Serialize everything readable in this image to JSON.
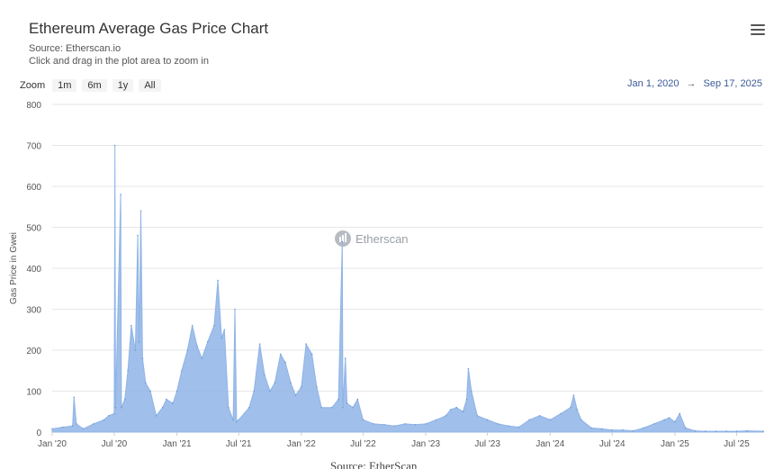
{
  "header": {
    "title": "Ethereum Average Gas Price Chart",
    "source": "Source: Etherscan.io",
    "hint": "Click and drag in the plot area to zoom in"
  },
  "menu": {
    "icon": "hamburger-menu-icon"
  },
  "zoom": {
    "label": "Zoom",
    "buttons": [
      "1m",
      "6m",
      "1y",
      "All"
    ]
  },
  "range": {
    "from": "Jan 1, 2020",
    "arrow": "→",
    "to": "Sep 17, 2025"
  },
  "watermark": {
    "text": "Etherscan",
    "icon": "etherscan-logo-icon"
  },
  "footer": {
    "source": "Source: EtherScan"
  },
  "colors": {
    "series": "#8fb4e6",
    "grid": "#e6e6e6",
    "axis": "#cccccc",
    "range_text": "#3c5a99"
  },
  "chart_data": {
    "type": "area",
    "title": "Ethereum Average Gas Price Chart",
    "ylabel": "Gas Price in Gwei",
    "ylim": [
      0,
      800
    ],
    "yticks": [
      0,
      100,
      200,
      300,
      400,
      500,
      600,
      700,
      800
    ],
    "xticks": [
      "Jan '20",
      "Jul '20",
      "Jan '21",
      "Jul '21",
      "Jan '22",
      "Jul '22",
      "Jan '23",
      "Jul '23",
      "Jan '24",
      "Jul '24",
      "Jan '25",
      "Jul '25"
    ],
    "grid": true,
    "legend": "none",
    "series": [
      {
        "points": [
          [
            "2020-01-01",
            8
          ],
          [
            "2020-02-01",
            12
          ],
          [
            "2020-03-01",
            15
          ],
          [
            "2020-03-05",
            85
          ],
          [
            "2020-03-12",
            20
          ],
          [
            "2020-04-01",
            8
          ],
          [
            "2020-05-01",
            20
          ],
          [
            "2020-06-01",
            30
          ],
          [
            "2020-06-15",
            40
          ],
          [
            "2020-07-01",
            45
          ],
          [
            "2020-07-03",
            700
          ],
          [
            "2020-07-05",
            60
          ],
          [
            "2020-07-20",
            580
          ],
          [
            "2020-07-22",
            60
          ],
          [
            "2020-08-01",
            80
          ],
          [
            "2020-08-10",
            150
          ],
          [
            "2020-08-20",
            260
          ],
          [
            "2020-09-01",
            200
          ],
          [
            "2020-09-08",
            480
          ],
          [
            "2020-09-12",
            220
          ],
          [
            "2020-09-17",
            540
          ],
          [
            "2020-09-22",
            180
          ],
          [
            "2020-10-01",
            120
          ],
          [
            "2020-10-15",
            100
          ],
          [
            "2020-11-01",
            40
          ],
          [
            "2020-11-20",
            60
          ],
          [
            "2020-12-01",
            80
          ],
          [
            "2020-12-20",
            70
          ],
          [
            "2021-01-01",
            100
          ],
          [
            "2021-01-15",
            150
          ],
          [
            "2021-02-01",
            200
          ],
          [
            "2021-02-15",
            260
          ],
          [
            "2021-03-01",
            210
          ],
          [
            "2021-03-15",
            180
          ],
          [
            "2021-04-01",
            220
          ],
          [
            "2021-04-20",
            260
          ],
          [
            "2021-05-01",
            370
          ],
          [
            "2021-05-12",
            230
          ],
          [
            "2021-05-20",
            250
          ],
          [
            "2021-06-01",
            60
          ],
          [
            "2021-06-15",
            30
          ],
          [
            "2021-06-20",
            300
          ],
          [
            "2021-06-25",
            25
          ],
          [
            "2021-07-01",
            30
          ],
          [
            "2021-08-01",
            60
          ],
          [
            "2021-08-15",
            100
          ],
          [
            "2021-09-01",
            215
          ],
          [
            "2021-09-15",
            140
          ],
          [
            "2021-10-01",
            100
          ],
          [
            "2021-10-15",
            120
          ],
          [
            "2021-11-01",
            190
          ],
          [
            "2021-11-15",
            170
          ],
          [
            "2021-12-01",
            120
          ],
          [
            "2021-12-15",
            90
          ],
          [
            "2022-01-01",
            110
          ],
          [
            "2022-01-15",
            215
          ],
          [
            "2022-02-01",
            190
          ],
          [
            "2022-02-15",
            110
          ],
          [
            "2022-03-01",
            60
          ],
          [
            "2022-04-01",
            60
          ],
          [
            "2022-04-20",
            80
          ],
          [
            "2022-05-01",
            465
          ],
          [
            "2022-05-03",
            60
          ],
          [
            "2022-05-10",
            180
          ],
          [
            "2022-05-15",
            70
          ],
          [
            "2022-06-01",
            60
          ],
          [
            "2022-06-15",
            80
          ],
          [
            "2022-07-01",
            30
          ],
          [
            "2022-08-01",
            20
          ],
          [
            "2022-09-01",
            18
          ],
          [
            "2022-10-01",
            15
          ],
          [
            "2022-11-01",
            20
          ],
          [
            "2022-12-01",
            18
          ],
          [
            "2023-01-01",
            20
          ],
          [
            "2023-02-01",
            30
          ],
          [
            "2023-03-01",
            40
          ],
          [
            "2023-03-15",
            55
          ],
          [
            "2023-04-01",
            60
          ],
          [
            "2023-04-20",
            50
          ],
          [
            "2023-05-01",
            80
          ],
          [
            "2023-05-06",
            155
          ],
          [
            "2023-05-15",
            100
          ],
          [
            "2023-06-01",
            40
          ],
          [
            "2023-07-01",
            30
          ],
          [
            "2023-08-01",
            20
          ],
          [
            "2023-09-01",
            15
          ],
          [
            "2023-10-01",
            12
          ],
          [
            "2023-11-01",
            30
          ],
          [
            "2023-12-01",
            40
          ],
          [
            "2024-01-01",
            30
          ],
          [
            "2024-02-01",
            45
          ],
          [
            "2024-03-01",
            60
          ],
          [
            "2024-03-10",
            90
          ],
          [
            "2024-03-20",
            55
          ],
          [
            "2024-04-01",
            30
          ],
          [
            "2024-05-01",
            10
          ],
          [
            "2024-06-01",
            8
          ],
          [
            "2024-07-01",
            5
          ],
          [
            "2024-08-01",
            5
          ],
          [
            "2024-09-01",
            3
          ],
          [
            "2024-10-01",
            10
          ],
          [
            "2024-11-01",
            20
          ],
          [
            "2024-12-01",
            30
          ],
          [
            "2024-12-15",
            35
          ],
          [
            "2025-01-01",
            25
          ],
          [
            "2025-01-15",
            45
          ],
          [
            "2025-02-01",
            10
          ],
          [
            "2025-03-01",
            3
          ],
          [
            "2025-04-01",
            2
          ],
          [
            "2025-05-01",
            2
          ],
          [
            "2025-06-01",
            2
          ],
          [
            "2025-07-01",
            2
          ],
          [
            "2025-08-01",
            3
          ],
          [
            "2025-09-17",
            2
          ]
        ]
      }
    ]
  }
}
